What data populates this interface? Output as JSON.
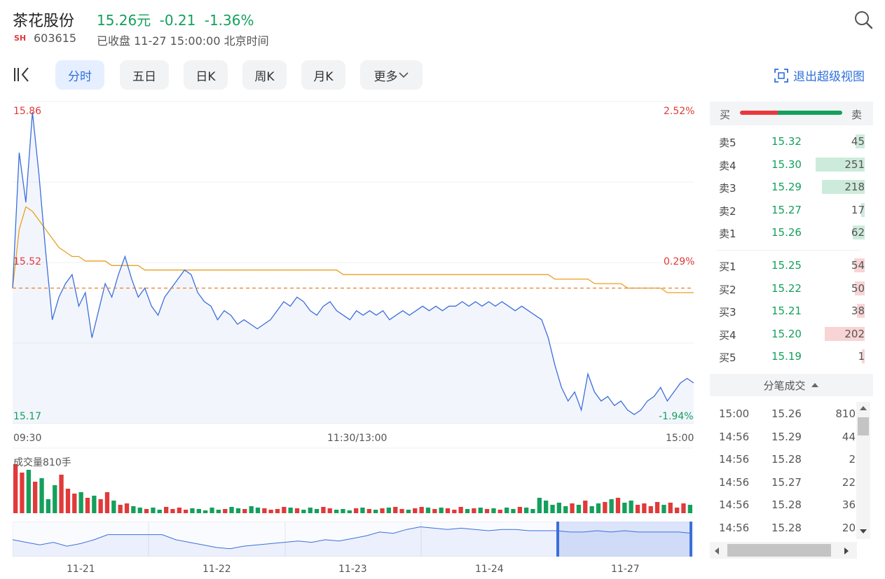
{
  "header": {
    "name": "茶花股份",
    "price": "15.26元",
    "change": "-0.21",
    "change_pct": "-1.36%",
    "exchange_badge": "SH",
    "code": "603615",
    "status": "已收盘 11-27 15:00:00 北京时间"
  },
  "toolbar": {
    "tabs": [
      {
        "label": "分时",
        "active": true
      },
      {
        "label": "五日",
        "active": false
      },
      {
        "label": "日K",
        "active": false
      },
      {
        "label": "周K",
        "active": false
      },
      {
        "label": "月K",
        "active": false
      },
      {
        "label": "更多",
        "active": false
      }
    ],
    "exit_label": "退出超级视图"
  },
  "chart_data": [
    {
      "type": "line",
      "title": "",
      "y_price_labels": {
        "max": "15.86",
        "mid": "15.52",
        "min": "15.17"
      },
      "y_pct_labels": {
        "max": "2.52%",
        "mid": "0.29%",
        "min": "-1.94%"
      },
      "ylim": [
        15.17,
        15.86
      ],
      "prev_close": 15.47,
      "x_labels": [
        "09:30",
        "11:30/13:00",
        "15:00"
      ],
      "series": [
        {
          "values": [
            15.47,
            15.77,
            15.66,
            15.86,
            15.72,
            15.55,
            15.4,
            15.45,
            15.48,
            15.5,
            15.43,
            15.46,
            15.36,
            15.42,
            15.48,
            15.45,
            15.5,
            15.54,
            15.49,
            15.45,
            15.47,
            15.43,
            15.41,
            15.45,
            15.47,
            15.49,
            15.51,
            15.5,
            15.46,
            15.44,
            15.43,
            15.4,
            15.42,
            15.41,
            15.39,
            15.4,
            15.39,
            15.38,
            15.39,
            15.4,
            15.42,
            15.44,
            15.43,
            15.45,
            15.44,
            15.42,
            15.41,
            15.43,
            15.44,
            15.42,
            15.41,
            15.4,
            15.42,
            15.41,
            15.42,
            15.41,
            15.42,
            15.4,
            15.41,
            15.42,
            15.41,
            15.42,
            15.43,
            15.42,
            15.43,
            15.42,
            15.43,
            15.43,
            15.44,
            15.43,
            15.44,
            15.43,
            15.44,
            15.43,
            15.44,
            15.43,
            15.42,
            15.43,
            15.42,
            15.41,
            15.4,
            15.36,
            15.3,
            15.25,
            15.22,
            15.24,
            15.2,
            15.28,
            15.24,
            15.22,
            15.23,
            15.21,
            15.22,
            15.2,
            15.19,
            15.2,
            15.22,
            15.23,
            15.25,
            15.22,
            15.24,
            15.26,
            15.27,
            15.26
          ]
        },
        {
          "values": [
            15.47,
            15.6,
            15.65,
            15.64,
            15.62,
            15.6,
            15.58,
            15.56,
            15.55,
            15.54,
            15.54,
            15.53,
            15.53,
            15.53,
            15.53,
            15.52,
            15.52,
            15.52,
            15.52,
            15.52,
            15.51,
            15.51,
            15.51,
            15.51,
            15.51,
            15.51,
            15.51,
            15.51,
            15.51,
            15.51,
            15.51,
            15.51,
            15.51,
            15.51,
            15.51,
            15.51,
            15.51,
            15.51,
            15.51,
            15.51,
            15.51,
            15.51,
            15.51,
            15.51,
            15.51,
            15.51,
            15.51,
            15.51,
            15.51,
            15.51,
            15.5,
            15.5,
            15.5,
            15.5,
            15.5,
            15.5,
            15.5,
            15.5,
            15.5,
            15.5,
            15.5,
            15.5,
            15.5,
            15.5,
            15.5,
            15.5,
            15.5,
            15.5,
            15.5,
            15.5,
            15.5,
            15.5,
            15.5,
            15.5,
            15.5,
            15.5,
            15.5,
            15.5,
            15.5,
            15.5,
            15.5,
            15.5,
            15.49,
            15.49,
            15.49,
            15.49,
            15.49,
            15.49,
            15.48,
            15.48,
            15.48,
            15.48,
            15.48,
            15.47,
            15.47,
            15.47,
            15.47,
            15.47,
            15.47,
            15.46,
            15.46,
            15.46,
            15.46,
            15.46
          ]
        }
      ]
    },
    {
      "type": "bar",
      "title": "成交量810手",
      "volume_values": [
        70,
        58,
        62,
        45,
        50,
        20,
        40,
        55,
        35,
        28,
        30,
        22,
        25,
        20,
        30,
        18,
        12,
        14,
        10,
        8,
        6,
        8,
        5,
        9,
        6,
        8,
        5,
        7,
        6,
        4,
        8,
        5,
        6,
        9,
        7,
        6,
        10,
        8,
        7,
        5,
        6,
        9,
        8,
        7,
        5,
        8,
        6,
        9,
        7,
        5,
        6,
        4,
        7,
        8,
        6,
        5,
        7,
        8,
        9,
        6,
        5,
        7,
        9,
        8,
        6,
        8,
        7,
        5,
        9,
        6,
        7,
        8,
        6,
        7,
        5,
        8,
        6,
        9,
        8,
        6,
        22,
        18,
        12,
        15,
        10,
        14,
        12,
        18,
        10,
        14,
        16,
        20,
        22,
        15,
        18,
        12,
        14,
        10,
        16,
        12,
        15,
        8,
        14,
        12
      ]
    },
    {
      "type": "line",
      "title": "",
      "x_labels": [
        "11-21",
        "11-22",
        "11-23",
        "11-24",
        "11-27"
      ],
      "series": [
        {
          "values": [
            52,
            50,
            48,
            50,
            47,
            49,
            52,
            56,
            56,
            56,
            56,
            56,
            52,
            50,
            48,
            46,
            45,
            47,
            48,
            49,
            50,
            51,
            50,
            52,
            51,
            53,
            55,
            58,
            57,
            60,
            62,
            61,
            60,
            61,
            60,
            59,
            60,
            60,
            59,
            59,
            59,
            58,
            58,
            59,
            58,
            59,
            58,
            58,
            58,
            58,
            57
          ]
        }
      ]
    }
  ],
  "order_book": {
    "buy_label": "买",
    "sell_label": "卖",
    "asks": [
      {
        "label": "卖5",
        "price": "15.32",
        "qty": "45"
      },
      {
        "label": "卖4",
        "price": "15.30",
        "qty": "251"
      },
      {
        "label": "卖3",
        "price": "15.29",
        "qty": "218"
      },
      {
        "label": "卖2",
        "price": "15.27",
        "qty": "17"
      },
      {
        "label": "卖1",
        "price": "15.26",
        "qty": "62"
      }
    ],
    "bids": [
      {
        "label": "买1",
        "price": "15.25",
        "qty": "54"
      },
      {
        "label": "买2",
        "price": "15.22",
        "qty": "50"
      },
      {
        "label": "买3",
        "price": "15.21",
        "qty": "38"
      },
      {
        "label": "买4",
        "price": "15.20",
        "qty": "202"
      },
      {
        "label": "买5",
        "price": "15.19",
        "qty": "1"
      }
    ]
  },
  "ticks": {
    "header": "分笔成交",
    "rows": [
      {
        "time": "15:00",
        "price": "15.26",
        "vol": "810"
      },
      {
        "time": "14:56",
        "price": "15.29",
        "vol": "44"
      },
      {
        "time": "14:56",
        "price": "15.28",
        "vol": "2"
      },
      {
        "time": "14:56",
        "price": "15.27",
        "vol": "22"
      },
      {
        "time": "14:56",
        "price": "15.28",
        "vol": "36"
      },
      {
        "time": "14:56",
        "price": "15.28",
        "vol": "20"
      }
    ]
  },
  "colors": {
    "up": "#e03a3a",
    "down": "#14a05c",
    "price_line": "#3b6fd9",
    "avg_line": "#e8a020",
    "accent": "#2f6fdc"
  }
}
